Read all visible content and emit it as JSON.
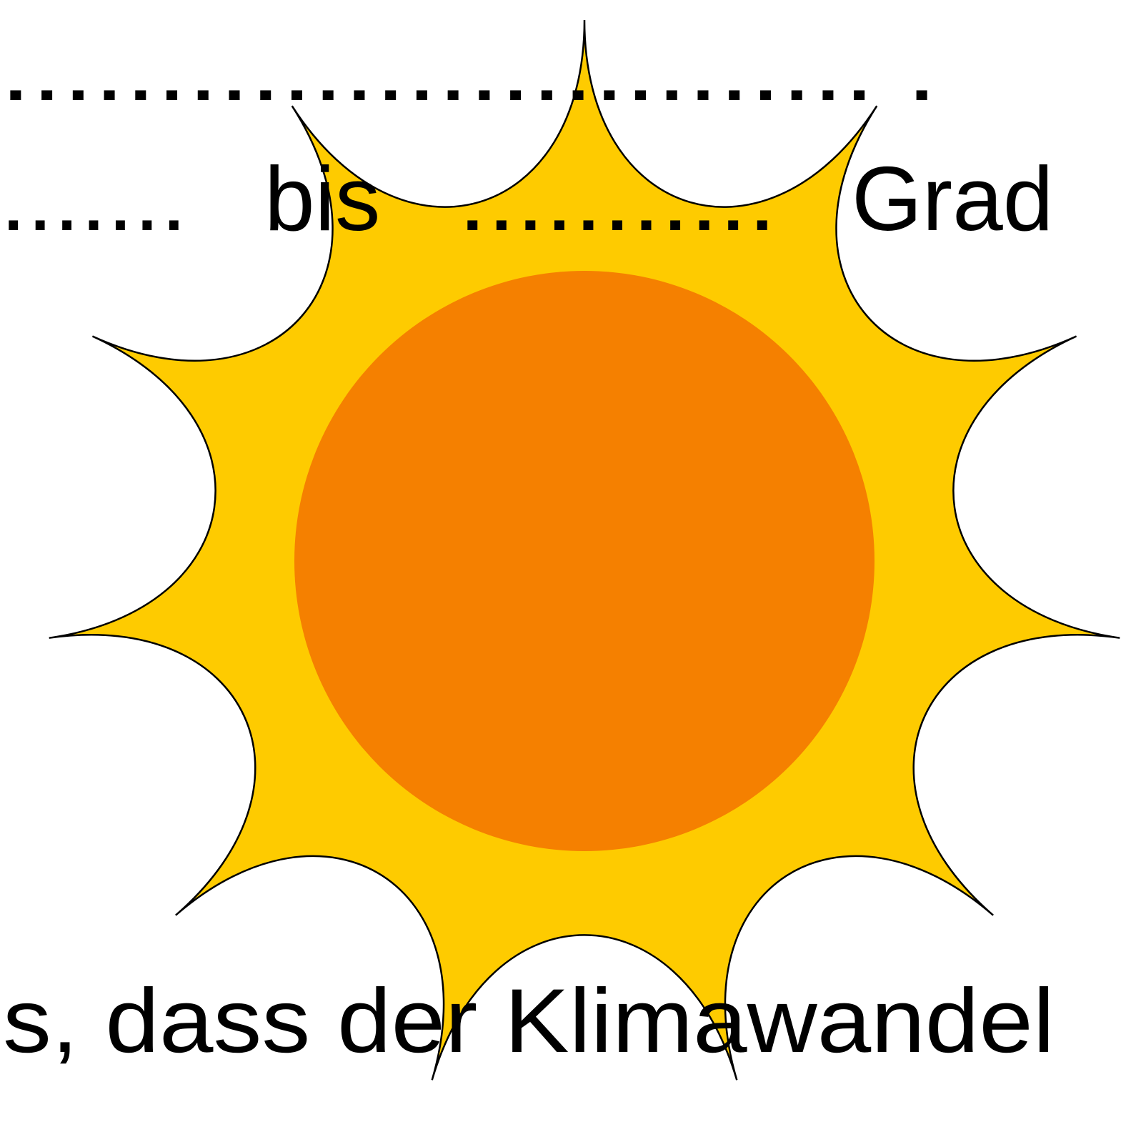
{
  "top_line": "............................ .",
  "middle_line": {
    "left": ".......",
    "word": "bis",
    "gap": "...........",
    "end": "Grad"
  },
  "bottom_line": "s, dass der Klimawandel"
}
